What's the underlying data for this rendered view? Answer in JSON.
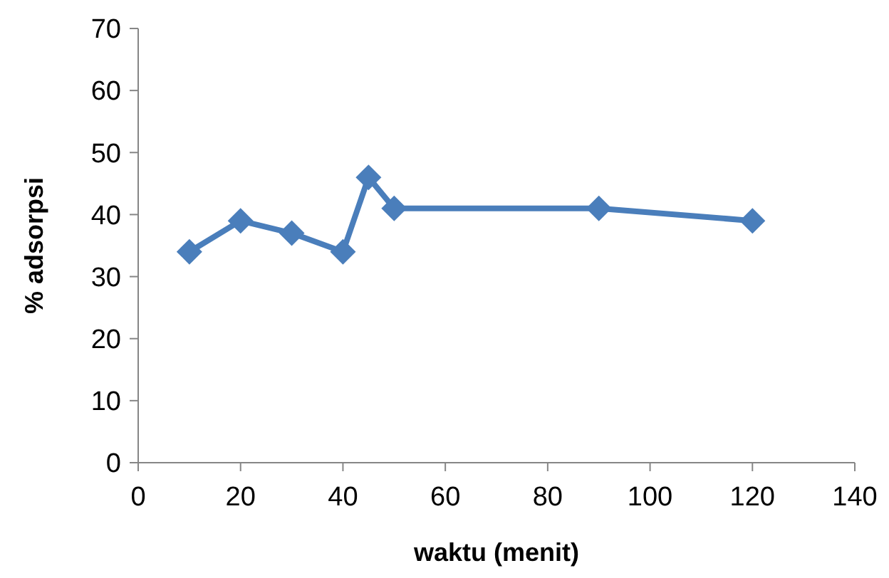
{
  "chart_data": {
    "type": "line",
    "xlabel": "waktu (menit)",
    "ylabel": "% adsorpsi",
    "x": [
      10,
      20,
      30,
      40,
      45,
      50,
      90,
      120
    ],
    "series": [
      {
        "color": "#4a7ebb",
        "values": [
          34,
          39,
          37,
          34,
          46,
          41,
          41,
          39
        ]
      }
    ],
    "xlim": [
      0,
      140
    ],
    "xticks": [
      0,
      20,
      40,
      60,
      80,
      100,
      120,
      140
    ],
    "ylim": [
      0,
      70
    ],
    "yticks": [
      0,
      10,
      20,
      30,
      40,
      50,
      60,
      70
    ],
    "marker": "diamond",
    "line_style": "solid",
    "grid": false
  }
}
